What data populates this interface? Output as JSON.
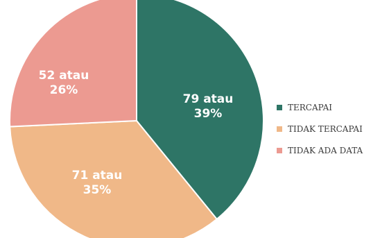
{
  "chart_data": {
    "type": "pie",
    "categories": [
      "TERCAPAI",
      "TIDAK TERCAPAI",
      "TIDAK ADA DATA"
    ],
    "values": [
      79,
      71,
      52
    ],
    "percent_labels": [
      "39%",
      "35%",
      "26%"
    ],
    "slice_labels": [
      [
        "79 atau",
        "39%"
      ],
      [
        "71 atau",
        "35%"
      ],
      [
        "52 atau",
        "26%"
      ]
    ],
    "colors": [
      "#2e7566",
      "#f0b888",
      "#ec9a91"
    ],
    "legend_position": "right",
    "legend": [
      "TERCAPAI",
      "TIDAK TERCAPAI",
      "TIDAK ADA DATA"
    ]
  }
}
